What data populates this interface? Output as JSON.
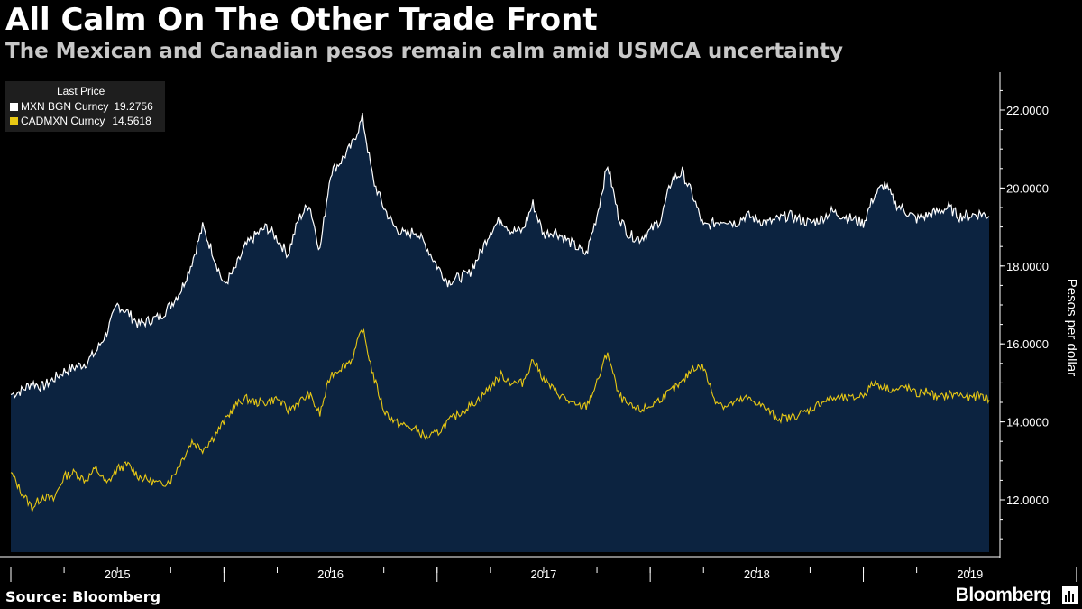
{
  "header": {
    "title": "All Calm On The Other Trade Front",
    "subtitle": "The Mexican and Canadian pesos remain calm amid USMCA uncertainty"
  },
  "legend": {
    "title": "Last Price",
    "items": [
      {
        "label": "MXN BGN Curncy",
        "value": "19.2756",
        "color": "#ffffff"
      },
      {
        "label": "CADMXN Curncy",
        "value": "14.5618",
        "color": "#e8c814"
      }
    ]
  },
  "footer": {
    "source": "Source: Bloomberg",
    "brand": "Bloomberg"
  },
  "colors": {
    "background": "#000000",
    "area_fill": "#0c2340",
    "mxn_line": "#ffffff",
    "cad_line": "#e8c814"
  },
  "chart_data": {
    "type": "area",
    "title": "All Calm On The Other Trade Front",
    "subtitle": "The Mexican and Canadian pesos remain calm amid USMCA uncertainty",
    "xlabel": "",
    "ylabel": "Pesos per dollar",
    "x_range": [
      2015.0,
      2019.59
    ],
    "ylim": [
      10.8,
      23.0
    ],
    "y_ticks": [
      12,
      14,
      16,
      18,
      20,
      22
    ],
    "y_tick_labels": [
      "12.0000",
      "14.0000",
      "16.0000",
      "18.0000",
      "20.0000",
      "22.0000"
    ],
    "x_ticks": [
      2015,
      2016,
      2017,
      2018,
      2019,
      2020
    ],
    "x_tick_labels": [
      "2015",
      "2016",
      "2017",
      "2018",
      "2019"
    ],
    "grid": false,
    "legend_position": "top-left",
    "series": [
      {
        "name": "MXN BGN Curncy",
        "last": 19.2756,
        "x": [
          2015.0,
          2015.05,
          2015.1,
          2015.15,
          2015.2,
          2015.25,
          2015.3,
          2015.35,
          2015.4,
          2015.45,
          2015.5,
          2015.55,
          2015.6,
          2015.65,
          2015.7,
          2015.75,
          2015.8,
          2015.85,
          2015.9,
          2015.95,
          2016.0,
          2016.05,
          2016.1,
          2016.15,
          2016.2,
          2016.25,
          2016.3,
          2016.35,
          2016.4,
          2016.45,
          2016.5,
          2016.55,
          2016.6,
          2016.65,
          2016.7,
          2016.75,
          2016.8,
          2016.85,
          2016.9,
          2016.95,
          2017.0,
          2017.05,
          2017.1,
          2017.15,
          2017.2,
          2017.25,
          2017.3,
          2017.35,
          2017.4,
          2017.45,
          2017.5,
          2017.55,
          2017.6,
          2017.65,
          2017.7,
          2017.75,
          2017.8,
          2017.85,
          2017.9,
          2017.95,
          2018.0,
          2018.05,
          2018.1,
          2018.15,
          2018.2,
          2018.25,
          2018.3,
          2018.35,
          2018.4,
          2018.45,
          2018.5,
          2018.55,
          2018.6,
          2018.65,
          2018.7,
          2018.75,
          2018.8,
          2018.85,
          2018.9,
          2018.95,
          2019.0,
          2019.05,
          2019.1,
          2019.15,
          2019.2,
          2019.25,
          2019.3,
          2019.35,
          2019.4,
          2019.45,
          2019.5,
          2019.55,
          2019.59
        ],
        "y": [
          14.7,
          14.8,
          15.0,
          14.9,
          15.1,
          15.3,
          15.4,
          15.5,
          15.8,
          16.3,
          17.0,
          16.8,
          16.5,
          16.6,
          16.7,
          17.0,
          17.4,
          18.1,
          19.0,
          18.3,
          17.5,
          17.9,
          18.5,
          18.8,
          19.0,
          18.7,
          18.3,
          19.2,
          19.6,
          18.4,
          20.4,
          20.7,
          21.1,
          21.8,
          20.2,
          19.5,
          19.0,
          18.8,
          18.9,
          18.5,
          18.0,
          17.6,
          17.7,
          17.8,
          18.3,
          18.9,
          19.2,
          18.9,
          18.9,
          19.6,
          18.8,
          18.9,
          18.7,
          18.5,
          18.3,
          19.3,
          20.6,
          19.3,
          18.8,
          18.7,
          18.9,
          19.2,
          20.2,
          20.4,
          19.8,
          19.0,
          19.1,
          19.2,
          19.1,
          19.3,
          19.2,
          19.1,
          19.2,
          19.3,
          19.2,
          19.1,
          19.2,
          19.4,
          19.3,
          19.2,
          19.1,
          19.8,
          20.1,
          19.6,
          19.4,
          19.2,
          19.3,
          19.4,
          19.5,
          19.2756,
          19.3,
          19.35,
          19.2756
        ]
      },
      {
        "name": "CADMXN Curncy",
        "last": 14.5618,
        "x": [
          2015.0,
          2015.05,
          2015.1,
          2015.15,
          2015.2,
          2015.25,
          2015.3,
          2015.35,
          2015.4,
          2015.45,
          2015.5,
          2015.55,
          2015.6,
          2015.65,
          2015.7,
          2015.75,
          2015.8,
          2015.85,
          2015.9,
          2015.95,
          2016.0,
          2016.05,
          2016.1,
          2016.15,
          2016.2,
          2016.25,
          2016.3,
          2016.35,
          2016.4,
          2016.45,
          2016.5,
          2016.55,
          2016.6,
          2016.65,
          2016.7,
          2016.75,
          2016.8,
          2016.85,
          2016.9,
          2016.95,
          2017.0,
          2017.05,
          2017.1,
          2017.15,
          2017.2,
          2017.25,
          2017.3,
          2017.35,
          2017.4,
          2017.45,
          2017.5,
          2017.55,
          2017.6,
          2017.65,
          2017.7,
          2017.75,
          2017.8,
          2017.85,
          2017.9,
          2017.95,
          2018.0,
          2018.05,
          2018.1,
          2018.15,
          2018.2,
          2018.25,
          2018.3,
          2018.35,
          2018.4,
          2018.45,
          2018.5,
          2018.55,
          2018.6,
          2018.65,
          2018.7,
          2018.75,
          2018.8,
          2018.85,
          2018.9,
          2018.95,
          2019.0,
          2019.05,
          2019.1,
          2019.15,
          2019.2,
          2019.25,
          2019.3,
          2019.35,
          2019.4,
          2019.45,
          2019.5,
          2019.55,
          2019.59
        ],
        "y": [
          12.7,
          12.2,
          11.8,
          12.1,
          12.0,
          12.6,
          12.7,
          12.5,
          12.8,
          12.4,
          12.8,
          12.9,
          12.6,
          12.5,
          12.4,
          12.5,
          13.0,
          13.5,
          13.3,
          13.6,
          14.0,
          14.4,
          14.6,
          14.5,
          14.5,
          14.6,
          14.3,
          14.5,
          14.7,
          14.2,
          15.2,
          15.4,
          15.6,
          16.4,
          15.2,
          14.3,
          14.0,
          13.9,
          13.8,
          13.6,
          13.7,
          14.0,
          14.2,
          14.4,
          14.6,
          14.9,
          15.2,
          15.0,
          15.0,
          15.6,
          15.1,
          14.8,
          14.6,
          14.4,
          14.4,
          15.0,
          15.8,
          14.7,
          14.4,
          14.3,
          14.4,
          14.6,
          14.8,
          15.0,
          15.4,
          15.4,
          14.6,
          14.4,
          14.5,
          14.6,
          14.5,
          14.3,
          14.1,
          14.1,
          14.2,
          14.3,
          14.5,
          14.6,
          14.6,
          14.6,
          14.7,
          15.0,
          14.9,
          14.8,
          14.9,
          14.7,
          14.8,
          14.6,
          14.7,
          14.7,
          14.6,
          14.7,
          14.5618
        ]
      }
    ]
  }
}
